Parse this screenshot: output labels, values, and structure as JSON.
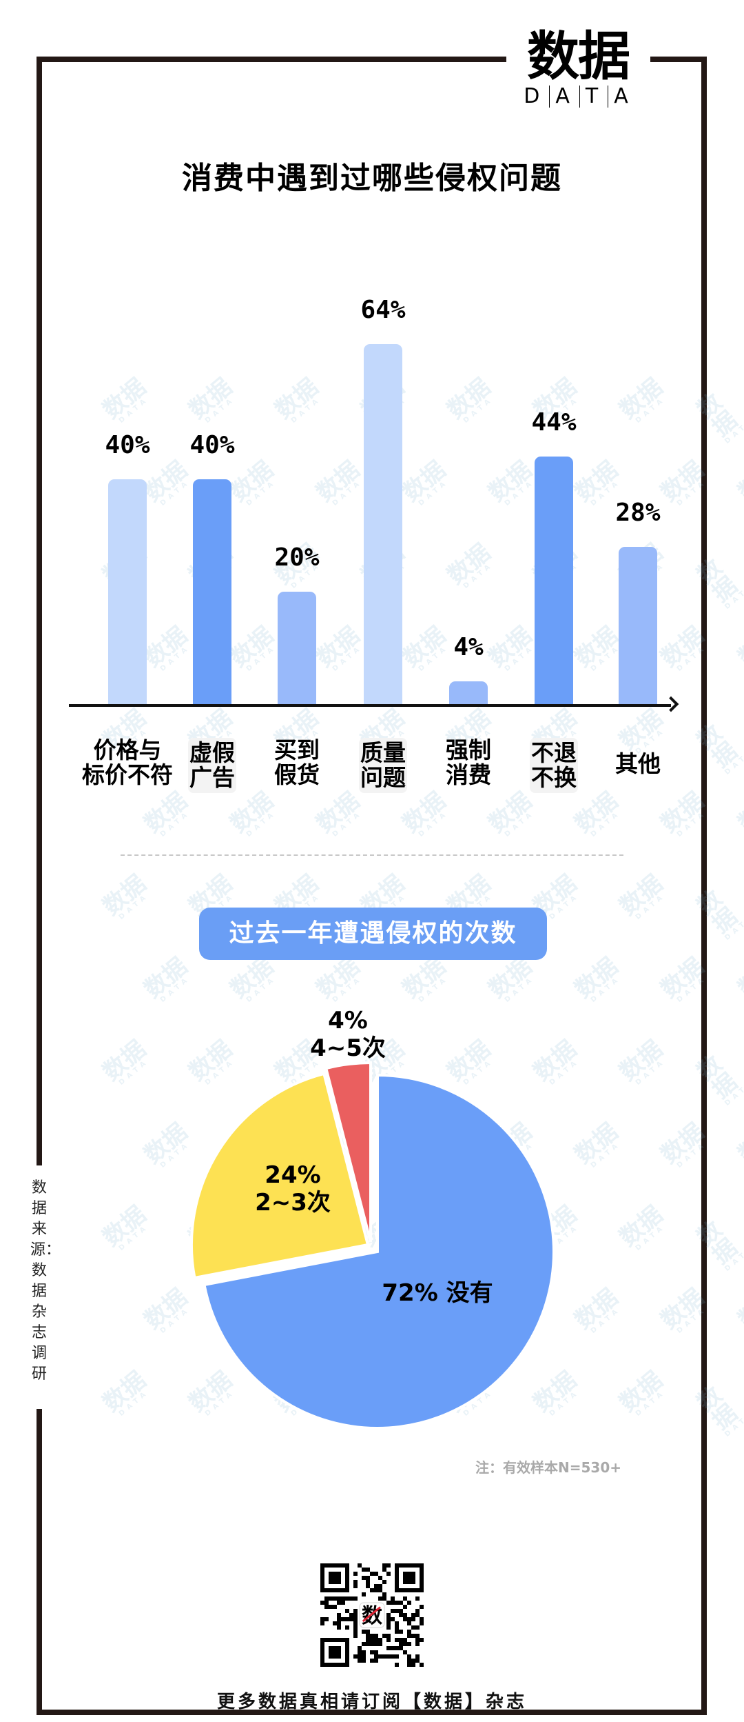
{
  "brand": {
    "logo_cn": "数据",
    "logo_en": [
      "D",
      "A",
      "T",
      "A"
    ]
  },
  "bar_section": {
    "title": "消费中遇到过哪些侵权问题"
  },
  "pie_section": {
    "title": "过去一年遭遇侵权的次数",
    "labels": {
      "none": "72% 没有",
      "two_three_pct": "24%",
      "two_three_label": "2~3次",
      "four_five_pct": "4%",
      "four_five_label": "4~5次"
    }
  },
  "note": "注：有效样本N=530+",
  "source": "数据来源：数据杂志调研",
  "footer": "更多数据真相请订阅【数据】杂志",
  "colors": {
    "border": "#231815",
    "bar_light": "#C2D8FC",
    "bar_dark": "#6A9EF8",
    "bar_mid": "#98B9FA",
    "pill": "#6A9EF5",
    "pie_blue": "#6A9EF8",
    "pie_yellow": "#FDE153",
    "pie_red": "#EA5F5F"
  },
  "chart_data": [
    {
      "type": "bar",
      "title": "消费中遇到过哪些侵权问题",
      "categories": [
        "价格与标价不符",
        "虚假广告",
        "买到假货",
        "质量问题",
        "强制消费",
        "不退不换",
        "其他"
      ],
      "category_lines": [
        [
          "价格与",
          "标价不符"
        ],
        [
          "虚假",
          "广告"
        ],
        [
          "买到",
          "假货"
        ],
        [
          "质量",
          "问题"
        ],
        [
          "强制",
          "消费"
        ],
        [
          "不退",
          "不换"
        ],
        [
          "其他"
        ]
      ],
      "values": [
        40,
        40,
        20,
        64,
        4,
        44,
        28
      ],
      "value_labels": [
        "40%",
        "40%",
        "20%",
        "64%",
        "4%",
        "44%",
        "28%"
      ],
      "xlabel": "",
      "ylabel": "",
      "unit": "%",
      "grid": false,
      "legend": null
    },
    {
      "type": "pie",
      "title": "过去一年遭遇侵权的次数",
      "categories": [
        "没有",
        "2~3次",
        "4~5次"
      ],
      "values": [
        72,
        24,
        4
      ],
      "value_labels": [
        "72%",
        "24%",
        "4%"
      ],
      "legend": null,
      "note": "注：有效样本N=530+"
    }
  ]
}
